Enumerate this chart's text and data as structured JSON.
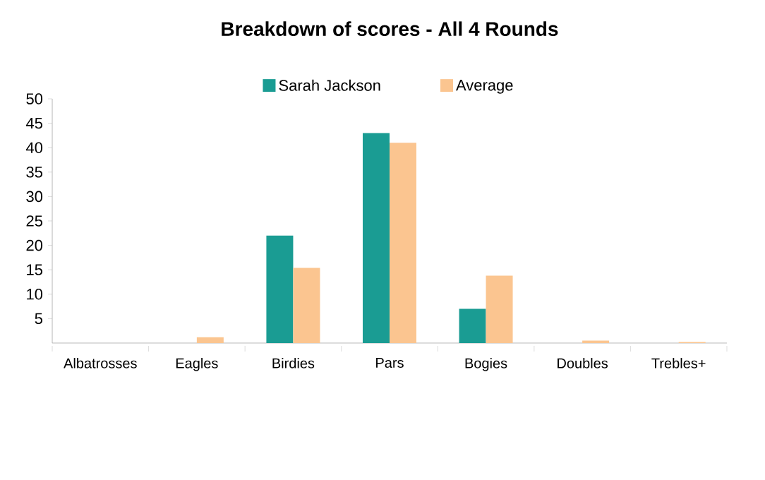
{
  "chart_data": {
    "type": "bar",
    "title": "Breakdown of scores - All 4 Rounds",
    "categories": [
      "Albatrosses",
      "Eagles",
      "Birdies",
      "Pars",
      "Bogies",
      "Doubles",
      "Trebles+"
    ],
    "series": [
      {
        "name": "Sarah Jackson",
        "color": "#1a9c93",
        "values": [
          0,
          0,
          22,
          43,
          7,
          0,
          0
        ]
      },
      {
        "name": "Average",
        "color": "#fbc590",
        "values": [
          0,
          1.2,
          15.4,
          41,
          13.8,
          0.5,
          0.2
        ]
      }
    ],
    "ylim": [
      0,
      50
    ],
    "yticks": [
      5,
      10,
      15,
      20,
      25,
      30,
      35,
      40,
      45,
      50
    ],
    "grid": false,
    "legend": "top"
  }
}
